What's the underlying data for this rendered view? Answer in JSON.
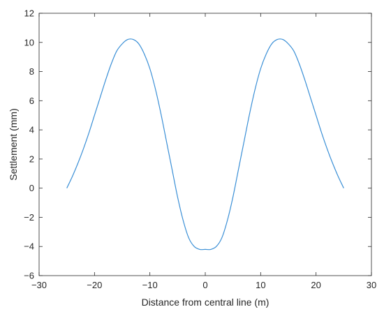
{
  "chart_data": {
    "type": "line",
    "title": "",
    "xlabel": "Distance from central line (m)",
    "ylabel": "Settlement (mm)",
    "xlim": [
      -30,
      30
    ],
    "ylim": [
      -6,
      12
    ],
    "xticks": [
      -30,
      -20,
      -10,
      0,
      10,
      20,
      30
    ],
    "yticks": [
      -6,
      -4,
      -2,
      0,
      2,
      4,
      6,
      8,
      10,
      12
    ],
    "xtick_labels": [
      "−30",
      "−20",
      "−10",
      "0",
      "10",
      "20",
      "30"
    ],
    "ytick_labels": [
      "−6",
      "−4",
      "−2",
      "0",
      "2",
      "4",
      "6",
      "8",
      "10",
      "12"
    ],
    "grid": false,
    "legend": "none",
    "line_color": "#3a8fd6",
    "series": [
      {
        "x": [
          -25,
          -24,
          -23,
          -22,
          -21,
          -20,
          -19,
          -18,
          -17,
          -16,
          -15,
          -14,
          -13,
          -12,
          -11,
          -10,
          -9,
          -8,
          -7,
          -6,
          -5,
          -4,
          -3,
          -2,
          -1,
          0,
          1,
          2,
          3,
          4,
          5,
          6,
          7,
          8,
          9,
          10,
          11,
          12,
          13,
          14,
          15,
          16,
          17,
          18,
          19,
          20,
          21,
          22,
          23,
          24,
          25
        ],
        "y": [
          0.0,
          0.8,
          1.7,
          2.7,
          3.8,
          5.0,
          6.2,
          7.4,
          8.5,
          9.4,
          9.9,
          10.2,
          10.2,
          9.9,
          9.2,
          8.2,
          6.8,
          5.1,
          3.2,
          1.3,
          -0.6,
          -2.2,
          -3.4,
          -4.0,
          -4.2,
          -4.2,
          -4.2,
          -4.0,
          -3.4,
          -2.2,
          -0.6,
          1.3,
          3.2,
          5.1,
          6.8,
          8.2,
          9.2,
          9.9,
          10.2,
          10.2,
          9.9,
          9.4,
          8.5,
          7.4,
          6.2,
          5.0,
          3.8,
          2.7,
          1.7,
          0.8,
          0.0
        ]
      }
    ]
  }
}
